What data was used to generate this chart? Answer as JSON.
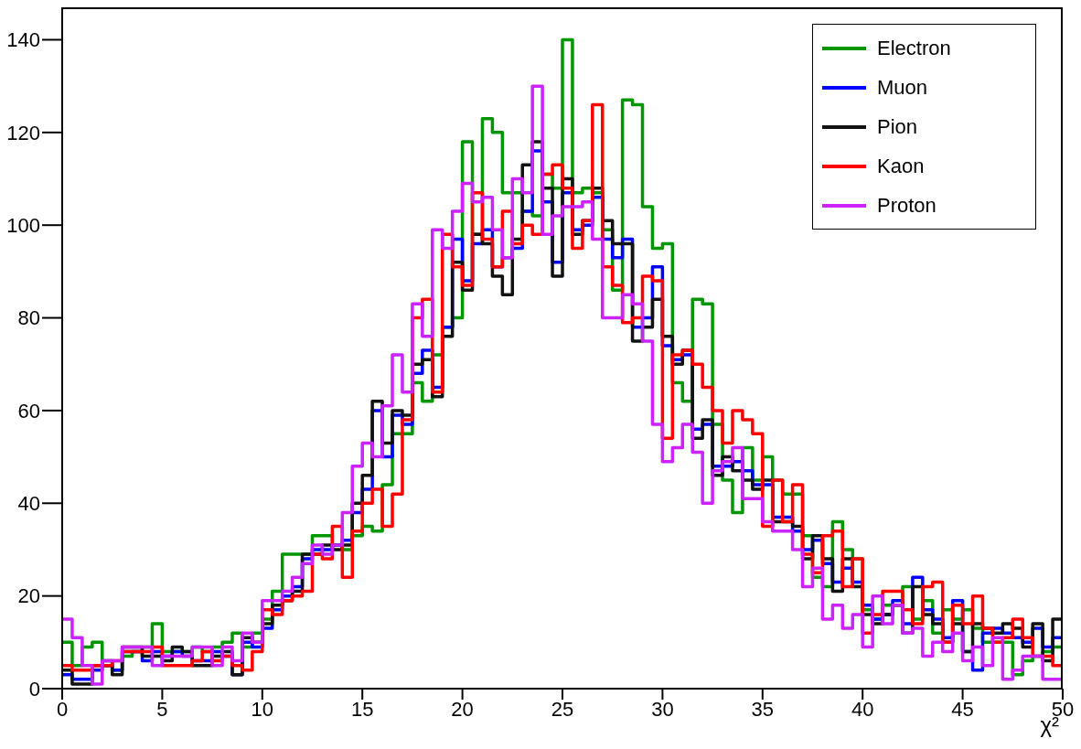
{
  "chart_data": {
    "type": "histogram",
    "xlabel": "χ²",
    "xlim": [
      0,
      50
    ],
    "ylim": [
      0,
      147
    ],
    "xticks": [
      0,
      5,
      10,
      15,
      20,
      25,
      30,
      35,
      40,
      45,
      50
    ],
    "yticks": [
      0,
      20,
      40,
      60,
      80,
      100,
      120,
      140
    ],
    "grid": false,
    "legend": "top right",
    "bins": [
      0,
      0.5,
      1,
      1.5,
      2,
      2.5,
      3,
      3.5,
      4,
      4.5,
      5,
      5.5,
      6,
      6.5,
      7,
      7.5,
      8,
      8.5,
      9,
      9.5,
      10,
      10.5,
      11,
      11.5,
      12,
      12.5,
      13,
      13.5,
      14,
      14.5,
      15,
      15.5,
      16,
      16.5,
      17,
      17.5,
      18,
      18.5,
      19,
      19.5,
      20,
      20.5,
      21,
      21.5,
      22,
      22.5,
      23,
      23.5,
      24,
      24.5,
      25,
      25.5,
      26,
      26.5,
      27,
      27.5,
      28,
      28.5,
      29,
      29.5,
      30,
      30.5,
      31,
      31.5,
      32,
      32.5,
      33,
      33.5,
      34,
      34.5,
      35,
      35.5,
      36,
      36.5,
      37,
      37.5,
      38,
      38.5,
      39,
      39.5,
      40,
      40.5,
      41,
      41.5,
      42,
      42.5,
      43,
      43.5,
      44,
      44.5,
      45,
      45.5,
      46,
      46.5,
      47,
      47.5,
      48,
      48.5,
      49,
      49.5,
      50
    ],
    "series": [
      {
        "name": "Electron",
        "color": "#009600",
        "values": [
          10,
          5,
          9,
          10,
          5,
          4,
          7,
          8,
          9,
          14,
          8,
          8,
          8,
          9,
          8,
          9,
          10,
          12,
          9,
          12,
          15,
          21,
          29,
          29,
          29,
          33,
          33,
          31,
          30,
          33,
          35,
          34,
          44,
          55,
          55,
          66,
          62,
          72,
          78,
          80,
          118,
          98,
          123,
          120,
          107,
          107,
          103,
          102,
          111,
          108,
          140,
          107,
          108,
          107,
          99,
          86,
          127,
          126,
          104,
          95,
          96,
          66,
          62,
          84,
          83,
          57,
          45,
          38,
          52,
          45,
          50,
          45,
          42,
          42,
          33,
          24,
          22,
          36,
          30,
          28,
          17,
          15,
          18,
          18,
          22,
          15,
          19,
          12,
          17,
          15,
          17,
          13,
          10,
          10,
          10,
          3,
          6,
          7,
          8,
          9
        ]
      },
      {
        "name": "Muon",
        "color": "#0000ff",
        "values": [
          3,
          2,
          2,
          4,
          5,
          4,
          8,
          8,
          6,
          8,
          7,
          8,
          7,
          6,
          6,
          8,
          7,
          3,
          10,
          9,
          13,
          17,
          20,
          22,
          28,
          30,
          30,
          31,
          32,
          38,
          43,
          60,
          50,
          59,
          57,
          68,
          73,
          65,
          78,
          97,
          88,
          96,
          99,
          91,
          93,
          95,
          103,
          116,
          105,
          92,
          107,
          99,
          100,
          106,
          97,
          93,
          97,
          78,
          80,
          91,
          74,
          71,
          72,
          56,
          57,
          48,
          48,
          49,
          47,
          44,
          44,
          37,
          37,
          34,
          30,
          32,
          27,
          23,
          26,
          23,
          18,
          15,
          16,
          19,
          14,
          24,
          17,
          15,
          11,
          19,
          8,
          4,
          12,
          13,
          12,
          11,
          10,
          13,
          9,
          11
        ]
      },
      {
        "name": "Pion",
        "color": "#111111",
        "values": [
          4,
          1,
          1,
          5,
          6,
          3,
          9,
          9,
          7,
          7,
          6,
          9,
          8,
          5,
          5,
          7,
          8,
          3,
          11,
          10,
          14,
          18,
          19,
          21,
          29,
          29,
          31,
          30,
          31,
          40,
          46,
          62,
          53,
          60,
          59,
          70,
          71,
          63,
          76,
          92,
          86,
          98,
          96,
          89,
          85,
          97,
          113,
          118,
          108,
          89,
          110,
          98,
          101,
          108,
          101,
          96,
          96,
          75,
          78,
          84,
          76,
          70,
          73,
          54,
          58,
          46,
          50,
          47,
          45,
          43,
          45,
          36,
          36,
          35,
          28,
          33,
          28,
          21,
          28,
          22,
          16,
          14,
          16,
          18,
          12,
          22,
          16,
          14,
          10,
          14,
          8,
          14,
          13,
          12,
          14,
          13,
          9,
          14,
          6,
          15
        ]
      },
      {
        "name": "Kaon",
        "color": "#ff0000",
        "values": [
          5,
          4,
          4,
          5,
          5,
          6,
          8,
          8,
          8,
          9,
          5,
          5,
          5,
          6,
          8,
          6,
          7,
          5,
          4,
          8,
          17,
          16,
          19,
          20,
          21,
          29,
          28,
          35,
          24,
          34,
          40,
          43,
          35,
          42,
          58,
          80,
          84,
          64,
          98,
          91,
          87,
          107,
          97,
          91,
          103,
          96,
          100,
          98,
          111,
          113,
          108,
          95,
          101,
          126,
          91,
          87,
          79,
          80,
          89,
          88,
          54,
          72,
          73,
          70,
          65,
          60,
          53,
          60,
          58,
          55,
          35,
          45,
          36,
          44,
          29,
          25,
          33,
          34,
          22,
          28,
          12,
          16,
          21,
          21,
          17,
          14,
          22,
          23,
          10,
          18,
          14,
          20,
          13,
          10,
          11,
          15,
          11,
          7,
          7,
          5
        ]
      },
      {
        "name": "Proton",
        "color": "#cc22ff",
        "values": [
          15,
          11,
          5,
          1,
          6,
          6,
          9,
          9,
          9,
          5,
          7,
          7,
          7,
          9,
          9,
          5,
          9,
          6,
          12,
          10,
          19,
          19,
          21,
          24,
          27,
          31,
          29,
          31,
          38,
          48,
          53,
          50,
          61,
          72,
          64,
          83,
          76,
          99,
          95,
          103,
          109,
          105,
          106,
          99,
          93,
          110,
          107,
          130,
          98,
          102,
          104,
          104,
          105,
          97,
          80,
          80,
          85,
          83,
          75,
          57,
          49,
          52,
          57,
          51,
          40,
          47,
          49,
          52,
          41,
          41,
          36,
          34,
          34,
          30,
          22,
          26,
          15,
          18,
          13,
          16,
          9,
          20,
          14,
          18,
          12,
          13,
          7,
          10,
          8,
          12,
          6,
          9,
          5,
          11,
          2,
          4,
          7,
          7,
          2,
          2
        ]
      }
    ]
  }
}
